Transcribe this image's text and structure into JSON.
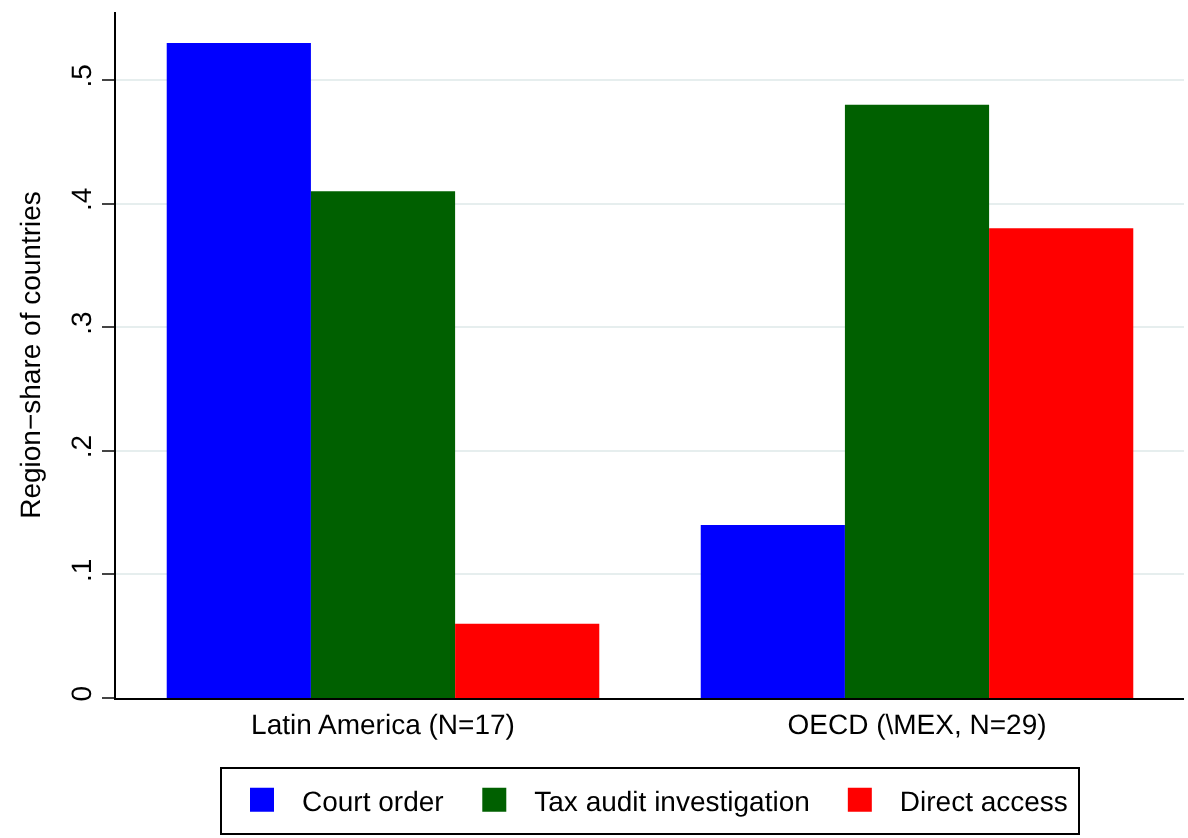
{
  "chart_data": {
    "type": "bar",
    "ylabel": "Region−share of countries",
    "categories": [
      "Latin America (N=17)",
      "OECD (\\MEX, N=29)"
    ],
    "series": [
      {
        "name": "Court order",
        "color": "#0000ff",
        "values": [
          0.53,
          0.14
        ]
      },
      {
        "name": "Tax audit investigation",
        "color": "#006000",
        "values": [
          0.41,
          0.48
        ]
      },
      {
        "name": "Direct access",
        "color": "#ff0000",
        "values": [
          0.06,
          0.38
        ]
      }
    ],
    "ylim": [
      0,
      0.555
    ],
    "yticks": [
      0,
      {
        "value": 0.1,
        "label": ".1"
      },
      {
        "value": 0.2,
        "label": ".2"
      },
      {
        "value": 0.3,
        "label": ".3"
      },
      {
        "value": 0.4,
        "label": ".4"
      },
      {
        "value": 0.5,
        "label": ".5"
      }
    ],
    "grid": "y",
    "legend": "bottom"
  }
}
